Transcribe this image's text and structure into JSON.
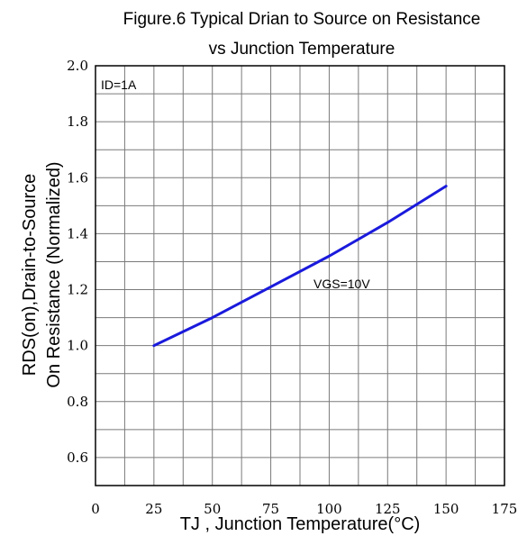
{
  "chart_data": {
    "type": "line",
    "title": [
      "Figure.6 Typical Drian to Source on Resistance",
      "vs Junction Temperature"
    ],
    "xlabel": "TJ , Junction Temperature(°C)",
    "ylabel": [
      "RDS(on),Drain-to-Source",
      "On Resistance (Normalized)"
    ],
    "xlim": [
      0,
      175
    ],
    "ylim": [
      0.5,
      2.0
    ],
    "xticks": [
      0,
      25,
      50,
      75,
      100,
      125,
      150,
      175
    ],
    "xtick_labels": [
      "0",
      "25",
      "50",
      "75",
      "100",
      "125",
      "150",
      "175"
    ],
    "yticks": [
      0.6,
      0.8,
      1.0,
      1.2,
      1.4,
      1.6,
      1.8,
      2.0
    ],
    "ytick_labels": [
      "0.6",
      "0.8",
      "1.0",
      "1.2",
      "1.4",
      "1.6",
      "1.8",
      "2.0"
    ],
    "grid": true,
    "annotations": [
      "ID=1A",
      "VGS=10V"
    ],
    "series": [
      {
        "color": "#1a1adc",
        "x": [
          25,
          50,
          75,
          100,
          125,
          150
        ],
        "y": [
          1.0,
          1.1,
          1.21,
          1.32,
          1.44,
          1.57
        ]
      }
    ]
  }
}
